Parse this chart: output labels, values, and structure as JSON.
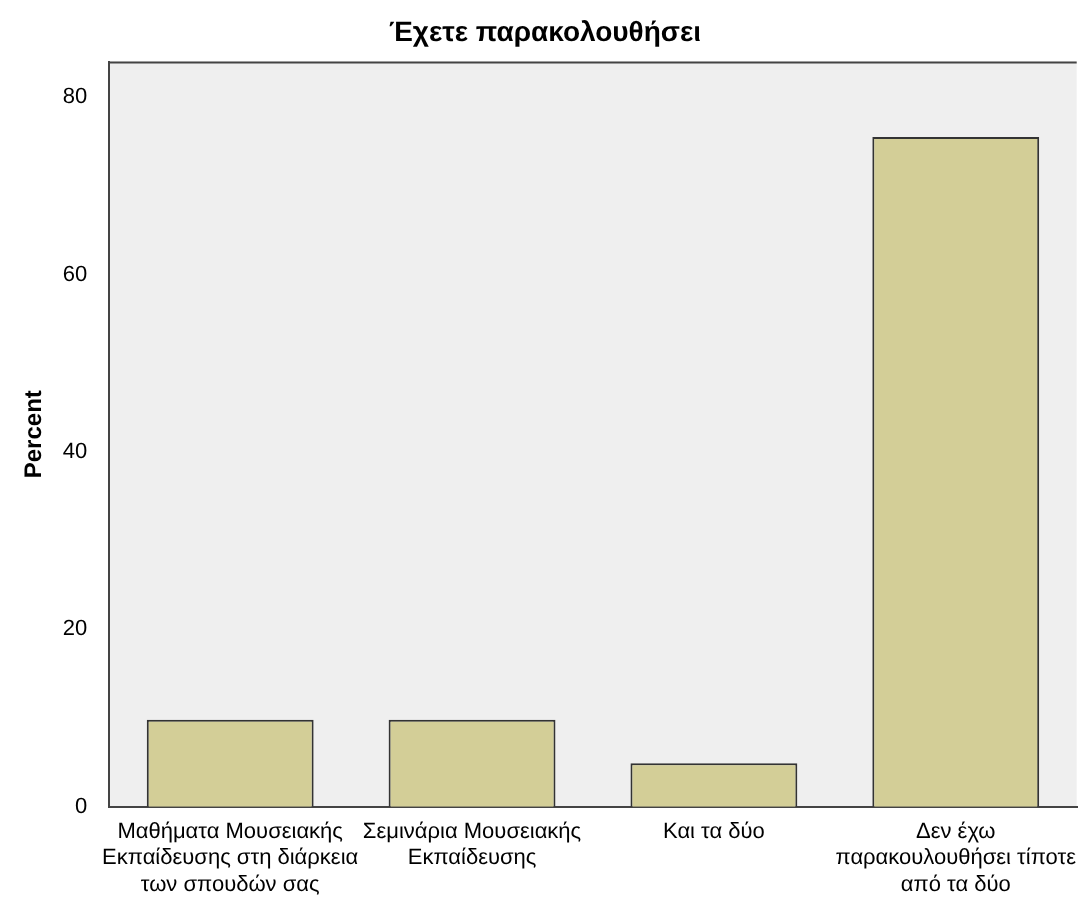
{
  "chart_data": {
    "type": "bar",
    "title": "Έχετε παρακολουθήσει",
    "ylabel": "Percent",
    "categories": [
      "Μαθήματα Μουσειακής Εκπαίδευσης στη διάρκεια των σπουδών σας",
      "Σεμινάρια Μουσειακής Εκπαίδευσης",
      "Και τα δύο",
      "Δεν έχω παρακουλουθήσει τίποτε από τα δύο"
    ],
    "values": [
      9.8,
      9.8,
      4.9,
      75.5
    ],
    "color": "#d3ce97",
    "ylim": [
      0,
      84
    ],
    "yticks": [
      0,
      20,
      40,
      60,
      80
    ],
    "grid": false,
    "legend": false
  }
}
